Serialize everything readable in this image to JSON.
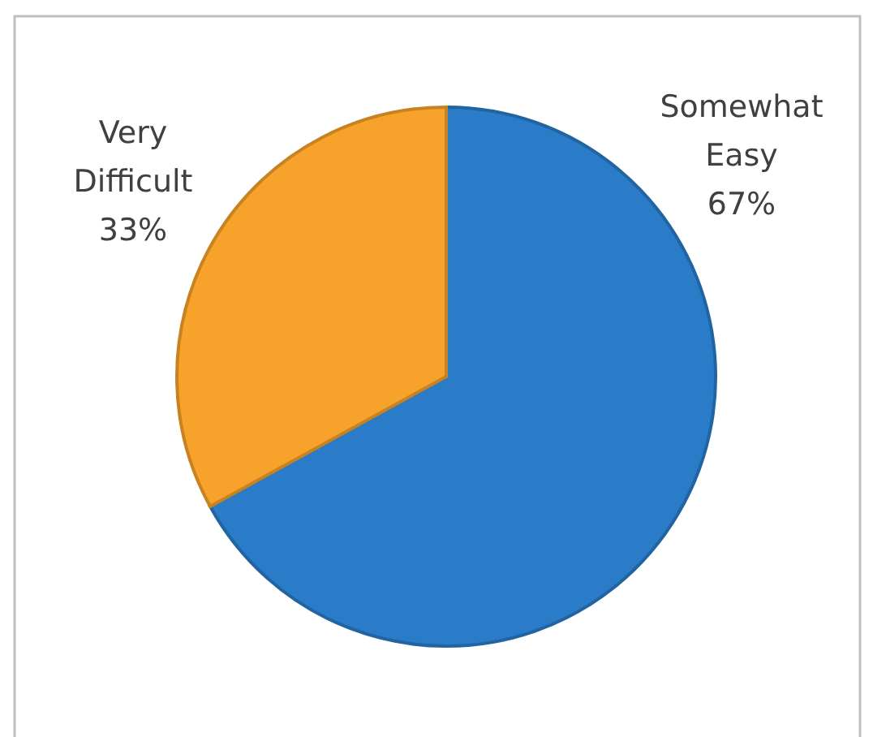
{
  "chart_data": {
    "type": "pie",
    "categories": [
      "Somewhat Easy",
      "Very Difficult"
    ],
    "values": [
      67,
      33
    ],
    "colors": [
      "#2a7cc8",
      "#f7a22a"
    ],
    "value_labels": [
      "67%",
      "33%"
    ]
  }
}
